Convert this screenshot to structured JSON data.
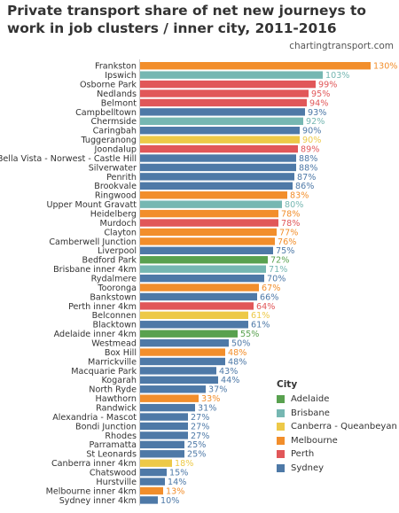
{
  "header": {
    "title": "Private transport share of net new journeys to work in job clusters / inner city, 2011-2016",
    "source": "chartingtransport.com"
  },
  "legend": {
    "title": "City",
    "items": [
      {
        "label": "Adelaide",
        "color": "#59a14f"
      },
      {
        "label": "Brisbane",
        "color": "#76b7b2"
      },
      {
        "label": "Canberra - Queanbeyan",
        "color": "#edc948"
      },
      {
        "label": "Melbourne",
        "color": "#f28e2b"
      },
      {
        "label": "Perth",
        "color": "#e15759"
      },
      {
        "label": "Sydney",
        "color": "#4e79a7"
      }
    ]
  },
  "chart_data": {
    "type": "bar",
    "orientation": "horizontal",
    "title": "Private transport share of net new journeys to work in job clusters / inner city, 2011-2016",
    "xlabel": "",
    "ylabel": "",
    "xlim": [
      0,
      130
    ],
    "grid": false,
    "legend_position": "bottom-right",
    "value_suffix": "%",
    "categories": [
      "Frankston",
      "Ipswich",
      "Osborne Park",
      "Nedlands",
      "Belmont",
      "Campbelltown",
      "Chermside",
      "Caringbah",
      "Tuggeranong",
      "Joondalup",
      "Bella Vista - Norwest - Castle Hill",
      "Silverwater",
      "Penrith",
      "Brookvale",
      "Ringwood",
      "Upper Mount Gravatt",
      "Heidelberg",
      "Murdoch",
      "Clayton",
      "Camberwell Junction",
      "Liverpool",
      "Bedford Park",
      "Brisbane inner 4km",
      "Rydalmere",
      "Tooronga",
      "Bankstown",
      "Perth inner 4km",
      "Belconnen",
      "Blacktown",
      "Adelaide inner 4km",
      "Westmead",
      "Box Hill",
      "Marrickville",
      "Macquarie Park",
      "Kogarah",
      "North Ryde",
      "Hawthorn",
      "Randwick",
      "Alexandria - Mascot",
      "Bondi Junction",
      "Rhodes",
      "Parramatta",
      "St Leonards",
      "Canberra inner 4km",
      "Chatswood",
      "Hurstville",
      "Melbourne inner 4km",
      "Sydney inner 4km"
    ],
    "values": [
      130,
      103,
      99,
      95,
      94,
      93,
      92,
      90,
      90,
      89,
      88,
      88,
      87,
      86,
      83,
      80,
      78,
      78,
      77,
      76,
      75,
      72,
      71,
      70,
      67,
      66,
      64,
      61,
      61,
      55,
      50,
      48,
      48,
      43,
      44,
      37,
      33,
      31,
      27,
      27,
      27,
      25,
      25,
      18,
      15,
      14,
      13,
      10
    ],
    "city": [
      "Melbourne",
      "Brisbane",
      "Perth",
      "Perth",
      "Perth",
      "Sydney",
      "Brisbane",
      "Sydney",
      "Canberra - Queanbeyan",
      "Perth",
      "Sydney",
      "Sydney",
      "Sydney",
      "Sydney",
      "Melbourne",
      "Brisbane",
      "Melbourne",
      "Perth",
      "Melbourne",
      "Melbourne",
      "Sydney",
      "Adelaide",
      "Brisbane",
      "Sydney",
      "Melbourne",
      "Sydney",
      "Perth",
      "Canberra - Queanbeyan",
      "Sydney",
      "Adelaide",
      "Sydney",
      "Melbourne",
      "Sydney",
      "Sydney",
      "Sydney",
      "Sydney",
      "Melbourne",
      "Sydney",
      "Sydney",
      "Sydney",
      "Sydney",
      "Sydney",
      "Sydney",
      "Canberra - Queanbeyan",
      "Sydney",
      "Sydney",
      "Melbourne",
      "Sydney"
    ]
  }
}
